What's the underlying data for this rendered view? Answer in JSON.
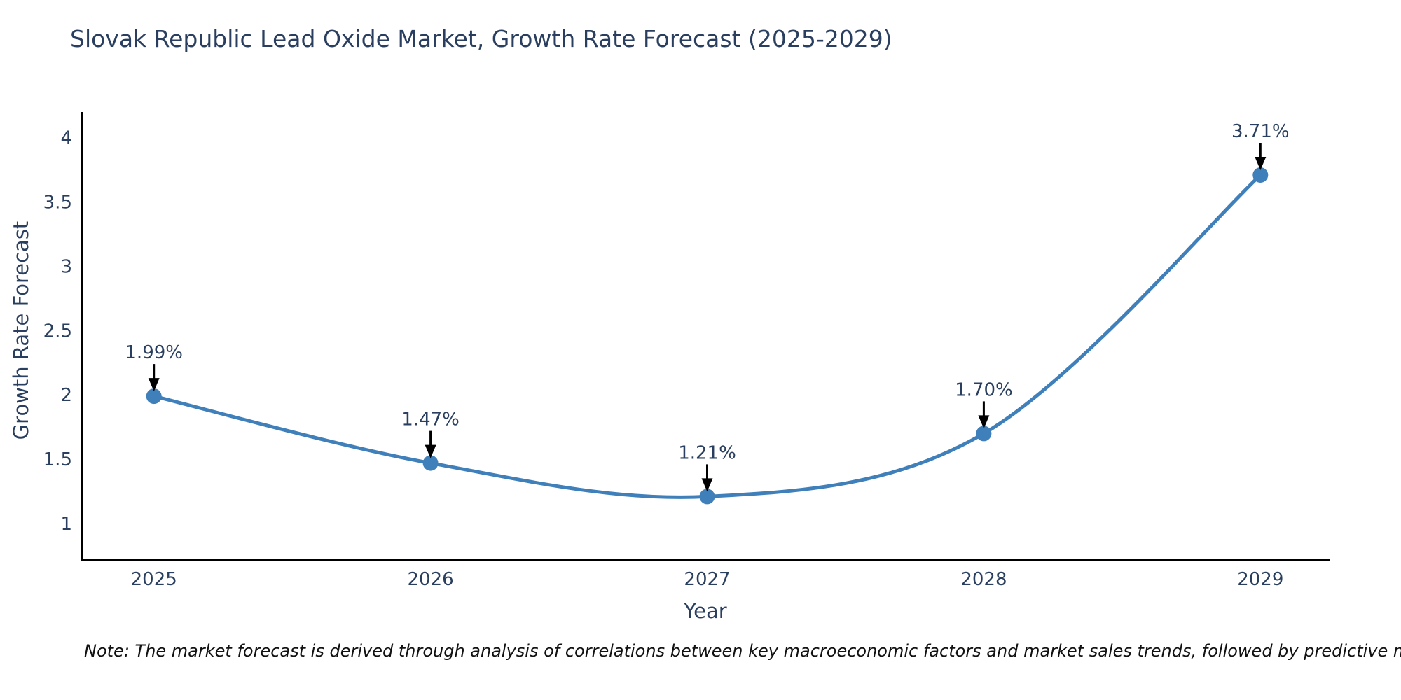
{
  "title": "Slovak Republic Lead Oxide Market, Growth Rate Forecast (2025-2029)",
  "note": "Note: The market forecast is derived through analysis of correlations between key macroeconomic factors and market sales trends, followed by predictive modeling to project future sales",
  "colors": {
    "line": "#3f7fba",
    "marker": "#3f7fba",
    "axis_line": "#000000",
    "text": "#2a3f5f",
    "arrow": "#000000",
    "background": "#ffffff"
  },
  "chart_data": {
    "type": "line",
    "title": "Slovak Republic Lead Oxide Market, Growth Rate Forecast (2025-2029)",
    "xlabel": "Year",
    "ylabel": "Growth Rate Forecast",
    "x": [
      2025,
      2026,
      2027,
      2028,
      2029
    ],
    "y": [
      1.99,
      1.47,
      1.21,
      1.7,
      3.71
    ],
    "point_labels": [
      "1.99%",
      "1.47%",
      "1.21%",
      "1.70%",
      "3.71%"
    ],
    "xticks": [
      "2025",
      "2026",
      "2027",
      "2028",
      "2029"
    ],
    "yticks": [
      1,
      1.5,
      2,
      2.5,
      3,
      3.5,
      4
    ],
    "ytick_labels": [
      "1",
      "1.5",
      "2",
      "2.5",
      "3",
      "3.5",
      "4"
    ],
    "xlim": [
      2024.74,
      2029.25
    ],
    "ylim": [
      0.717,
      4.2
    ],
    "grid": false,
    "legend": false,
    "line_shape": "spline",
    "annotations_arrow": true
  }
}
